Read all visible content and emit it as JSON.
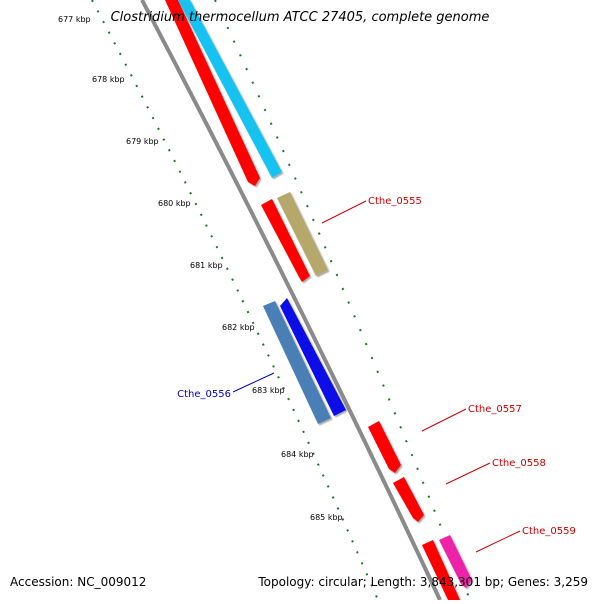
{
  "title": "Clostridium thermocellum ATCC 27405, complete genome",
  "footer": {
    "accession": "Accession: NC_009012",
    "summary": "Topology: circular; Length: 3,843,301 bp; Genes: 3,259"
  },
  "colors": {
    "backbone": "#8a8a8a",
    "tick_green": "#1a7a1a",
    "forward_red": "#ff0000",
    "cyan": "#17c3f0",
    "olive": "#b6a86a",
    "steel_blue": "#4a7fb5",
    "blue": "#0a10e8",
    "magenta": "#ee20a8",
    "label_red": "#cc0000",
    "label_blue": "#0000bb"
  },
  "tick_labels": [
    "677 kbp",
    "678 kbp",
    "679 kbp",
    "680 kbp",
    "681 kbp",
    "682 kbp",
    "683 kbp",
    "684 kbp",
    "685 kbp"
  ],
  "gene_labels": [
    {
      "name": "Cthe_0555",
      "color": "label_red"
    },
    {
      "name": "Cthe_0556",
      "color": "label_blue"
    },
    {
      "name": "Cthe_0557",
      "color": "label_red"
    },
    {
      "name": "Cthe_0558",
      "color": "label_red"
    },
    {
      "name": "Cthe_0559",
      "color": "label_red"
    }
  ]
}
